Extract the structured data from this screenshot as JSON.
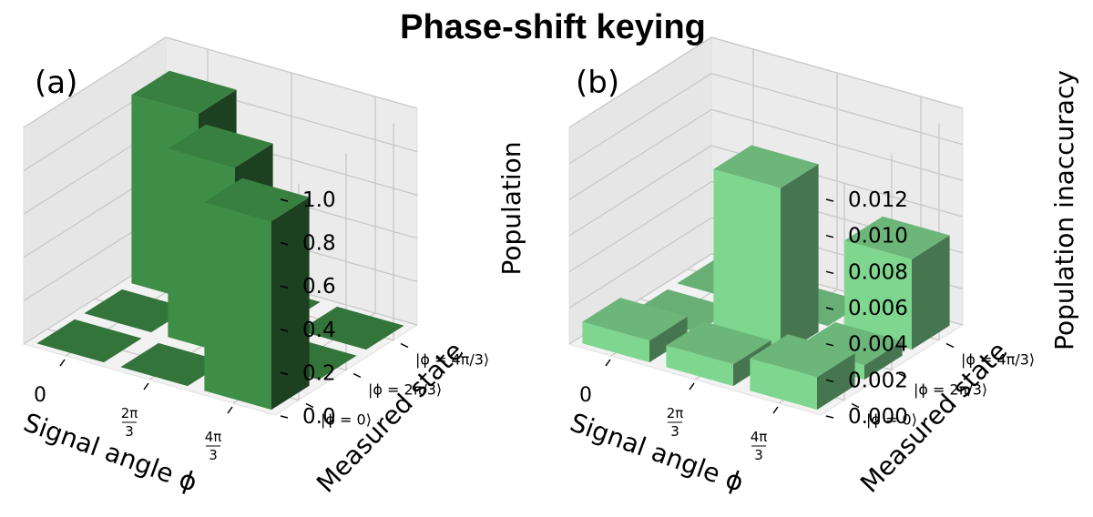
{
  "figure": {
    "title": "Phase-shift keying"
  },
  "chart_data": [
    {
      "type": "bar3d",
      "panel_label": "(a)",
      "title": "",
      "xlabel": "Signal angle ϕ",
      "ylabel": "Measured state",
      "zlabel": "Population",
      "x_ticks": [
        {
          "num": "0",
          "den": ""
        },
        {
          "num": "2π",
          "den": "3"
        },
        {
          "num": "4π",
          "den": "3"
        }
      ],
      "y_ticks": [
        "|ϕ = 0⟩",
        "|ϕ = 2π/3⟩",
        "|ϕ = 4π/3⟩"
      ],
      "z_ticks": [
        "0.0",
        "0.2",
        "0.4",
        "0.6",
        "0.8",
        "1.0"
      ],
      "zlim": [
        0,
        1.0
      ],
      "bar_color": "#3e8e47",
      "bars": [
        {
          "x": 0,
          "y": 0,
          "value": 0.0
        },
        {
          "x": 0,
          "y": 1,
          "value": 0.0
        },
        {
          "x": 0,
          "y": 2,
          "value": 0.87
        },
        {
          "x": 1,
          "y": 0,
          "value": 0.0
        },
        {
          "x": 1,
          "y": 1,
          "value": 0.87
        },
        {
          "x": 1,
          "y": 2,
          "value": 0.0
        },
        {
          "x": 2,
          "y": 0,
          "value": 0.87
        },
        {
          "x": 2,
          "y": 1,
          "value": 0.0
        },
        {
          "x": 2,
          "y": 2,
          "value": 0.0
        }
      ]
    },
    {
      "type": "bar3d",
      "panel_label": "(b)",
      "title": "",
      "xlabel": "Signal angle ϕ",
      "ylabel": "Measured state",
      "zlabel": "Population inaccuracy",
      "x_ticks": [
        {
          "num": "0",
          "den": ""
        },
        {
          "num": "2π",
          "den": "3"
        },
        {
          "num": "4π",
          "den": "3"
        }
      ],
      "y_ticks": [
        "|ϕ = 0⟩",
        "|ϕ = 2π/3⟩",
        "|ϕ = 4π/3⟩"
      ],
      "z_ticks": [
        "0.000",
        "0.002",
        "0.004",
        "0.006",
        "0.008",
        "0.010",
        "0.012"
      ],
      "zlim": [
        0,
        0.012
      ],
      "bar_color": "#7fd68f",
      "bars": [
        {
          "x": 0,
          "y": 0,
          "value": 0.0012
        },
        {
          "x": 0,
          "y": 1,
          "value": 0.0
        },
        {
          "x": 0,
          "y": 2,
          "value": 0.0
        },
        {
          "x": 1,
          "y": 0,
          "value": 0.0012
        },
        {
          "x": 1,
          "y": 1,
          "value": 0.0093
        },
        {
          "x": 1,
          "y": 2,
          "value": 0.0
        },
        {
          "x": 2,
          "y": 0,
          "value": 0.0018
        },
        {
          "x": 2,
          "y": 1,
          "value": 0.0008
        },
        {
          "x": 2,
          "y": 2,
          "value": 0.005
        }
      ]
    }
  ]
}
